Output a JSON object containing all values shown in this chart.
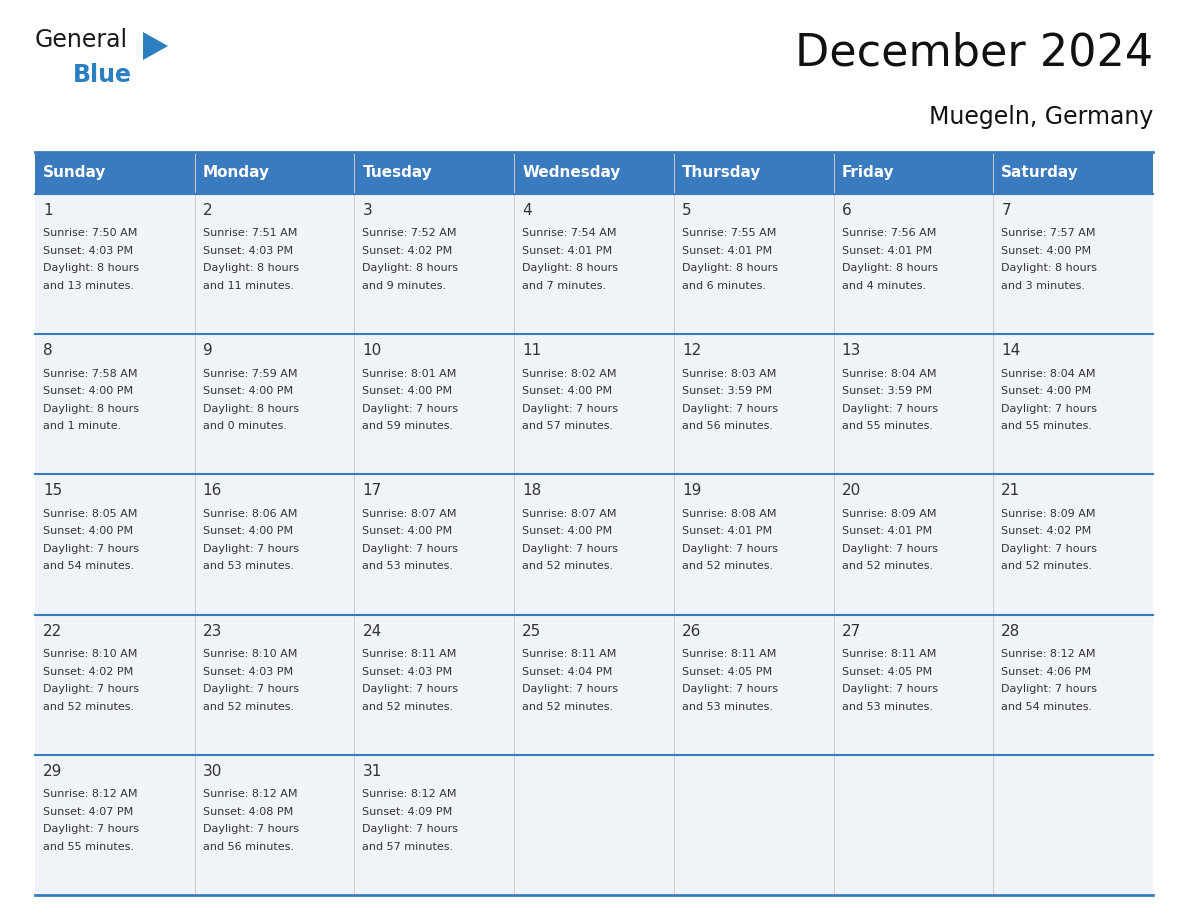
{
  "title": "December 2024",
  "subtitle": "Muegeln, Germany",
  "days_of_week": [
    "Sunday",
    "Monday",
    "Tuesday",
    "Wednesday",
    "Thursday",
    "Friday",
    "Saturday"
  ],
  "header_bg": "#3a7abf",
  "header_text_color": "#ffffff",
  "cell_bg": "#f0f4f8",
  "separator_color": "#3a7abf",
  "text_color": "#333333",
  "grid_line_color": "#aaaaaa",
  "calendar_data": [
    [
      {
        "day": 1,
        "sunrise": "7:50 AM",
        "sunset": "4:03 PM",
        "daylight_line1": "8 hours",
        "daylight_line2": "and 13 minutes."
      },
      {
        "day": 2,
        "sunrise": "7:51 AM",
        "sunset": "4:03 PM",
        "daylight_line1": "8 hours",
        "daylight_line2": "and 11 minutes."
      },
      {
        "day": 3,
        "sunrise": "7:52 AM",
        "sunset": "4:02 PM",
        "daylight_line1": "8 hours",
        "daylight_line2": "and 9 minutes."
      },
      {
        "day": 4,
        "sunrise": "7:54 AM",
        "sunset": "4:01 PM",
        "daylight_line1": "8 hours",
        "daylight_line2": "and 7 minutes."
      },
      {
        "day": 5,
        "sunrise": "7:55 AM",
        "sunset": "4:01 PM",
        "daylight_line1": "8 hours",
        "daylight_line2": "and 6 minutes."
      },
      {
        "day": 6,
        "sunrise": "7:56 AM",
        "sunset": "4:01 PM",
        "daylight_line1": "8 hours",
        "daylight_line2": "and 4 minutes."
      },
      {
        "day": 7,
        "sunrise": "7:57 AM",
        "sunset": "4:00 PM",
        "daylight_line1": "8 hours",
        "daylight_line2": "and 3 minutes."
      }
    ],
    [
      {
        "day": 8,
        "sunrise": "7:58 AM",
        "sunset": "4:00 PM",
        "daylight_line1": "8 hours",
        "daylight_line2": "and 1 minute."
      },
      {
        "day": 9,
        "sunrise": "7:59 AM",
        "sunset": "4:00 PM",
        "daylight_line1": "8 hours",
        "daylight_line2": "and 0 minutes."
      },
      {
        "day": 10,
        "sunrise": "8:01 AM",
        "sunset": "4:00 PM",
        "daylight_line1": "7 hours",
        "daylight_line2": "and 59 minutes."
      },
      {
        "day": 11,
        "sunrise": "8:02 AM",
        "sunset": "4:00 PM",
        "daylight_line1": "7 hours",
        "daylight_line2": "and 57 minutes."
      },
      {
        "day": 12,
        "sunrise": "8:03 AM",
        "sunset": "3:59 PM",
        "daylight_line1": "7 hours",
        "daylight_line2": "and 56 minutes."
      },
      {
        "day": 13,
        "sunrise": "8:04 AM",
        "sunset": "3:59 PM",
        "daylight_line1": "7 hours",
        "daylight_line2": "and 55 minutes."
      },
      {
        "day": 14,
        "sunrise": "8:04 AM",
        "sunset": "4:00 PM",
        "daylight_line1": "7 hours",
        "daylight_line2": "and 55 minutes."
      }
    ],
    [
      {
        "day": 15,
        "sunrise": "8:05 AM",
        "sunset": "4:00 PM",
        "daylight_line1": "7 hours",
        "daylight_line2": "and 54 minutes."
      },
      {
        "day": 16,
        "sunrise": "8:06 AM",
        "sunset": "4:00 PM",
        "daylight_line1": "7 hours",
        "daylight_line2": "and 53 minutes."
      },
      {
        "day": 17,
        "sunrise": "8:07 AM",
        "sunset": "4:00 PM",
        "daylight_line1": "7 hours",
        "daylight_line2": "and 53 minutes."
      },
      {
        "day": 18,
        "sunrise": "8:07 AM",
        "sunset": "4:00 PM",
        "daylight_line1": "7 hours",
        "daylight_line2": "and 52 minutes."
      },
      {
        "day": 19,
        "sunrise": "8:08 AM",
        "sunset": "4:01 PM",
        "daylight_line1": "7 hours",
        "daylight_line2": "and 52 minutes."
      },
      {
        "day": 20,
        "sunrise": "8:09 AM",
        "sunset": "4:01 PM",
        "daylight_line1": "7 hours",
        "daylight_line2": "and 52 minutes."
      },
      {
        "day": 21,
        "sunrise": "8:09 AM",
        "sunset": "4:02 PM",
        "daylight_line1": "7 hours",
        "daylight_line2": "and 52 minutes."
      }
    ],
    [
      {
        "day": 22,
        "sunrise": "8:10 AM",
        "sunset": "4:02 PM",
        "daylight_line1": "7 hours",
        "daylight_line2": "and 52 minutes."
      },
      {
        "day": 23,
        "sunrise": "8:10 AM",
        "sunset": "4:03 PM",
        "daylight_line1": "7 hours",
        "daylight_line2": "and 52 minutes."
      },
      {
        "day": 24,
        "sunrise": "8:11 AM",
        "sunset": "4:03 PM",
        "daylight_line1": "7 hours",
        "daylight_line2": "and 52 minutes."
      },
      {
        "day": 25,
        "sunrise": "8:11 AM",
        "sunset": "4:04 PM",
        "daylight_line1": "7 hours",
        "daylight_line2": "and 52 minutes."
      },
      {
        "day": 26,
        "sunrise": "8:11 AM",
        "sunset": "4:05 PM",
        "daylight_line1": "7 hours",
        "daylight_line2": "and 53 minutes."
      },
      {
        "day": 27,
        "sunrise": "8:11 AM",
        "sunset": "4:05 PM",
        "daylight_line1": "7 hours",
        "daylight_line2": "and 53 minutes."
      },
      {
        "day": 28,
        "sunrise": "8:12 AM",
        "sunset": "4:06 PM",
        "daylight_line1": "7 hours",
        "daylight_line2": "and 54 minutes."
      }
    ],
    [
      {
        "day": 29,
        "sunrise": "8:12 AM",
        "sunset": "4:07 PM",
        "daylight_line1": "7 hours",
        "daylight_line2": "and 55 minutes."
      },
      {
        "day": 30,
        "sunrise": "8:12 AM",
        "sunset": "4:08 PM",
        "daylight_line1": "7 hours",
        "daylight_line2": "and 56 minutes."
      },
      {
        "day": 31,
        "sunrise": "8:12 AM",
        "sunset": "4:09 PM",
        "daylight_line1": "7 hours",
        "daylight_line2": "and 57 minutes."
      },
      null,
      null,
      null,
      null
    ]
  ],
  "logo_text_general": "General",
  "logo_text_blue": "Blue",
  "logo_blue": "#2a7fc1",
  "logo_black": "#1a1a1a",
  "fig_width": 11.88,
  "fig_height": 9.18,
  "dpi": 100
}
